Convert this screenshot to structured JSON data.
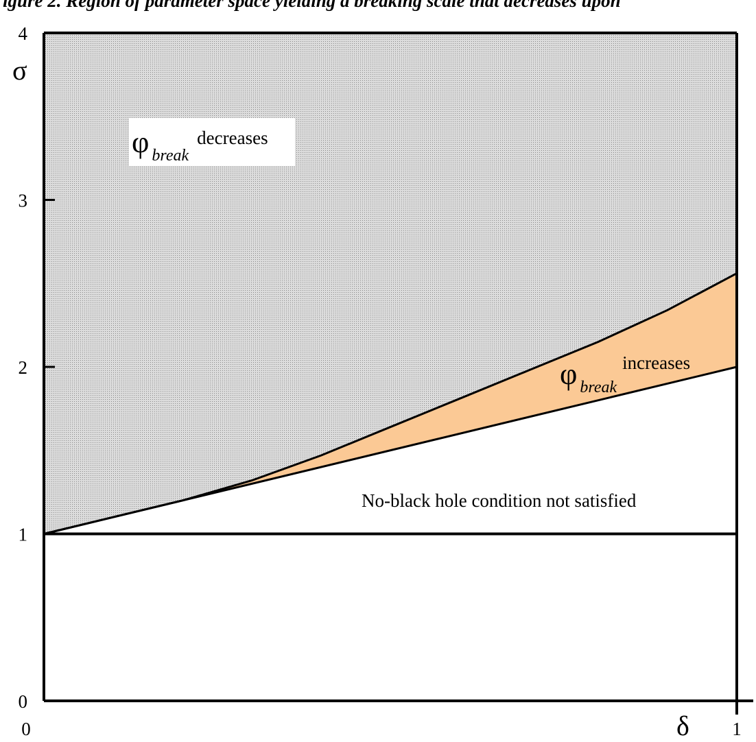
{
  "caption": "igure 2. Region of parameter space yielding a breaking scale that decreases upon",
  "colors": {
    "decreases_fill": "#dcdcdc",
    "decreases_dots": "#8a8a8a",
    "increases_fill": "#fbc995",
    "axis": "#000000"
  },
  "chart_data": {
    "type": "area",
    "xlabel": "δ",
    "ylabel": "σ",
    "xlim": [
      0,
      1
    ],
    "ylim": [
      0,
      4
    ],
    "x_ticks": [
      {
        "value": 0,
        "label": "0"
      },
      {
        "value": 1,
        "label": "1"
      }
    ],
    "y_ticks": [
      {
        "value": 0,
        "label": "0"
      },
      {
        "value": 1,
        "label": "1"
      },
      {
        "value": 2,
        "label": "2"
      },
      {
        "value": 3,
        "label": "3"
      },
      {
        "value": 4,
        "label": "4"
      }
    ],
    "lines": {
      "upper_boundary": {
        "x": [
          0,
          0.1,
          0.2,
          0.3,
          0.4,
          0.5,
          0.6,
          0.7,
          0.8,
          0.9,
          1.0
        ],
        "y": [
          1.0,
          1.1,
          1.2,
          1.32,
          1.47,
          1.64,
          1.81,
          1.98,
          2.15,
          2.34,
          2.56
        ]
      },
      "lower_boundary": {
        "x": [
          0,
          1
        ],
        "y": [
          1,
          2
        ]
      },
      "sigma_one": {
        "x": [
          0,
          1
        ],
        "y": [
          1,
          1
        ]
      }
    },
    "regions": [
      {
        "name": "decreases",
        "label_symbol": "φ",
        "label_subscript": "break",
        "label_text": "decreases",
        "label_pos": {
          "x": 0.13,
          "y": 3.38
        }
      },
      {
        "name": "increases",
        "label_symbol": "φ",
        "label_subscript": "break",
        "label_text": "increases",
        "label_pos": {
          "x": 0.75,
          "y": 1.92
        }
      },
      {
        "name": "not_satisfied",
        "label_text": "No-black hole condition not satisfied",
        "label_pos": {
          "x": 0.46,
          "y": 1.2
        }
      }
    ]
  }
}
